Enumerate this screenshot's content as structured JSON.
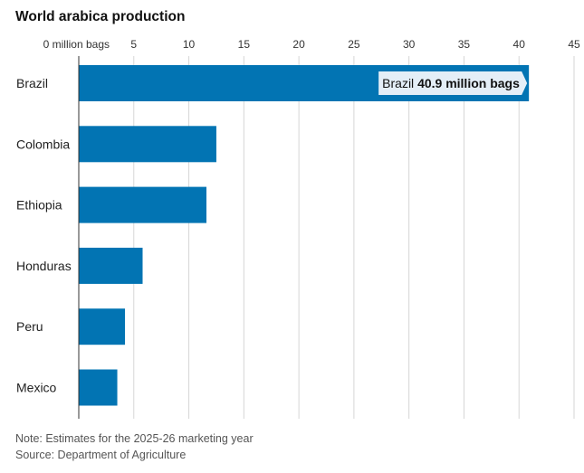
{
  "chart_data": {
    "type": "bar",
    "orientation": "horizontal",
    "title": "World arabica production",
    "x_unit_label": "million bags",
    "categories": [
      "Brazil",
      "Colombia",
      "Ethiopia",
      "Honduras",
      "Peru",
      "Mexico"
    ],
    "values": [
      40.9,
      12.5,
      11.6,
      5.8,
      4.2,
      3.5
    ],
    "xlim": [
      0,
      45
    ],
    "xticks": [
      0,
      5,
      10,
      15,
      20,
      25,
      30,
      35,
      40,
      45
    ],
    "grid": true,
    "bar_color": "#0274b3",
    "annotation": {
      "category": "Brazil",
      "prefix": "Brazil",
      "value_text": "40.9 million bags"
    }
  },
  "footer": {
    "note": "Note: Estimates for the 2025-26 marketing year",
    "source": "Source: Department of Agriculture"
  }
}
